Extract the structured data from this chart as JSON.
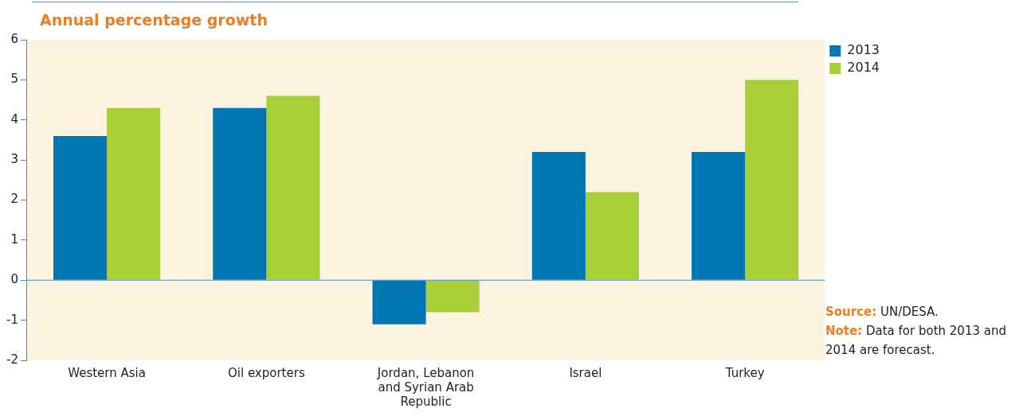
{
  "chart_data": {
    "type": "bar",
    "title": "Annual percentage growth",
    "categories": [
      "Western Asia",
      "Oil exporters",
      "Jordan, Lebanon and Syrian Arab Republic",
      "Israel",
      "Turkey"
    ],
    "series": [
      {
        "name": "2013",
        "color": "#0077b3",
        "values": [
          3.6,
          4.3,
          -1.1,
          3.2,
          3.2
        ]
      },
      {
        "name": "2014",
        "color": "#a8cf38",
        "values": [
          4.3,
          4.6,
          -0.8,
          2.2,
          5.0
        ]
      }
    ],
    "ref_lines": [
      {
        "axis": "y",
        "value": 0,
        "color": "#3a8fc4"
      }
    ],
    "ylim": [
      -2,
      6
    ],
    "yticks": [
      -2,
      -1,
      0,
      1,
      2,
      3,
      4,
      5,
      6
    ],
    "grid": false,
    "legend": "top right",
    "annotations": [
      "Source: UN/DESA.",
      "Note: Data for both 2013 and 2014 are forecast."
    ]
  }
}
